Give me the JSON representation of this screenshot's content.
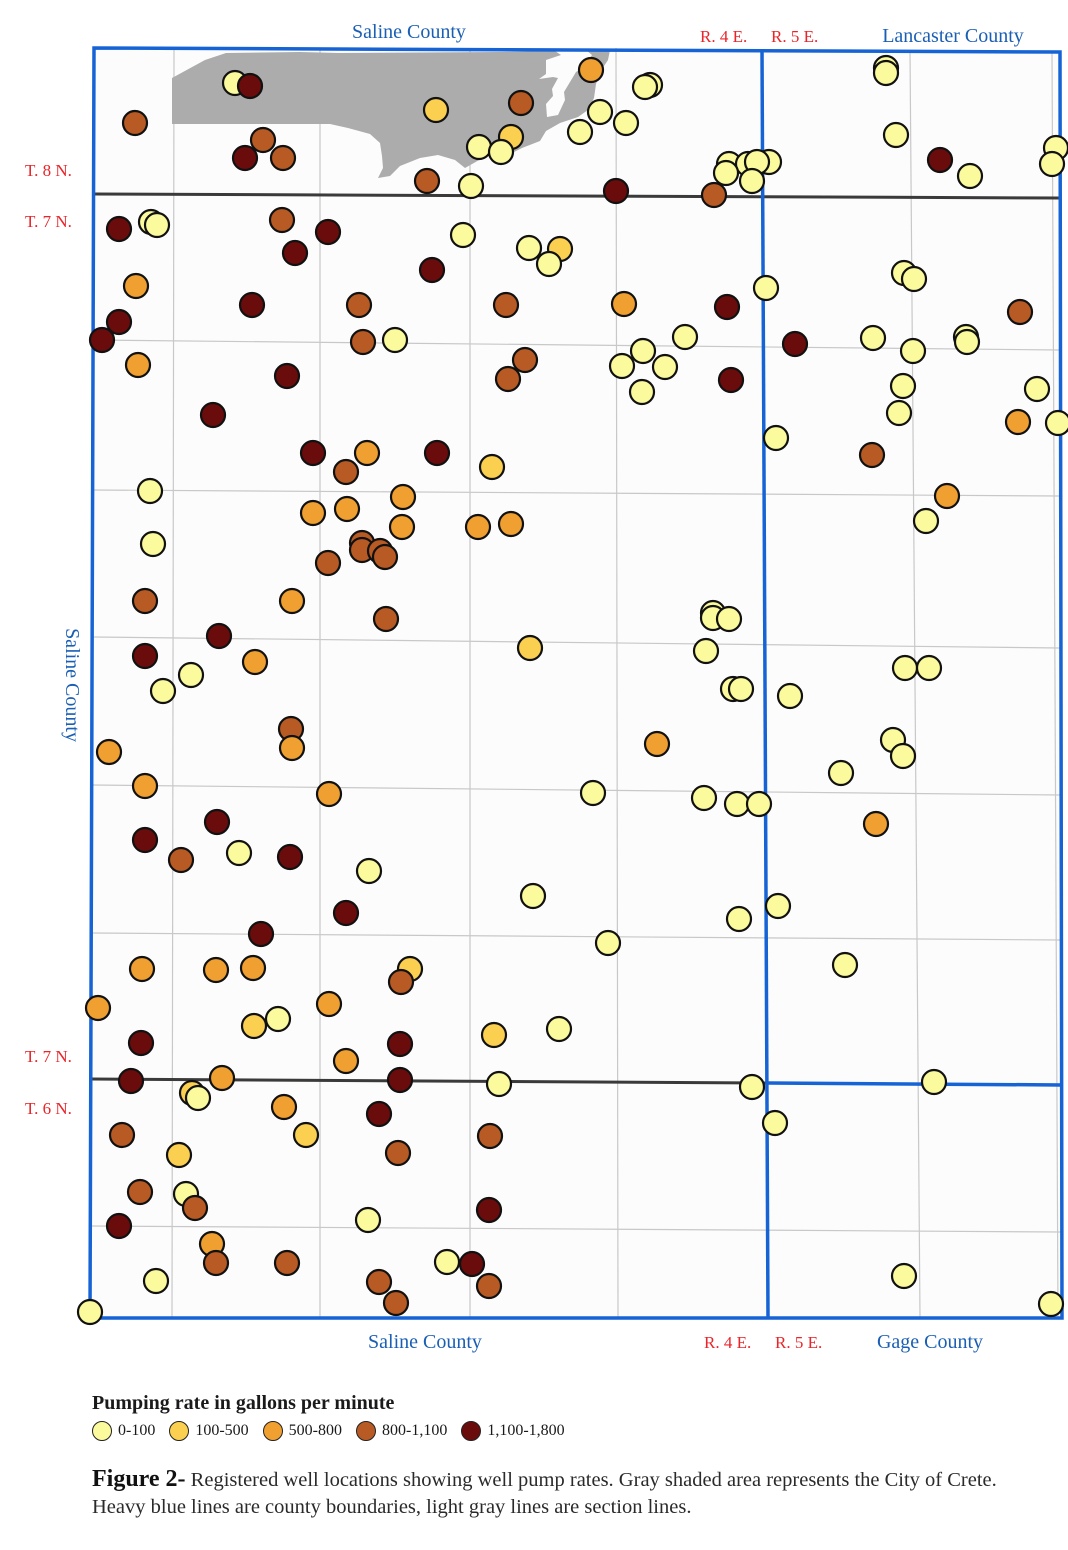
{
  "map": {
    "labels": {
      "saline_top": "Saline County",
      "saline_bottom": "Saline County",
      "saline_left": "Saline County",
      "lancaster": "Lancaster County",
      "gage": "Gage County",
      "r4e_top": "R. 4 E.",
      "r5e_top": "R. 5 E.",
      "r4e_bottom": "R. 4 E.",
      "r5e_bottom": "R. 5 E.",
      "t8n": "T. 8 N.",
      "t7n_top": "T. 7 N.",
      "t7n_bottom": "T. 7 N.",
      "t6n": "T. 6 N."
    },
    "colors": {
      "county_line": "#1663d6",
      "township_line": "#3a3a3a",
      "section_line": "#c8c8c8",
      "city_fill": "#acacac",
      "rate_0_100": "#fbfa9d",
      "rate_100_500": "#fbd050",
      "rate_500_800": "#f0a030",
      "rate_800_1100": "#b85a24",
      "rate_1100_1800": "#6a0c0c"
    },
    "wells": [
      [
        "A",
        235,
        83
      ],
      [
        "E",
        250,
        86
      ],
      [
        "D",
        135,
        123
      ],
      [
        "D",
        263,
        140
      ],
      [
        "E",
        245,
        158
      ],
      [
        "D",
        283,
        158
      ],
      [
        "B",
        436,
        110
      ],
      [
        "D",
        521,
        103
      ],
      [
        "C",
        591,
        70
      ],
      [
        "A",
        650,
        85
      ],
      [
        "A",
        645,
        87
      ],
      [
        "A",
        600,
        112
      ],
      [
        "A",
        626,
        123
      ],
      [
        "A",
        580,
        132
      ],
      [
        "B",
        511,
        137
      ],
      [
        "A",
        479,
        147
      ],
      [
        "A",
        501,
        152
      ],
      [
        "D",
        427,
        181
      ],
      [
        "A",
        471,
        186
      ],
      [
        "E",
        616,
        191
      ],
      [
        "D",
        714,
        195
      ],
      [
        "A",
        729,
        164
      ],
      [
        "A",
        748,
        164
      ],
      [
        "A",
        769,
        162
      ],
      [
        "A",
        757,
        162
      ],
      [
        "A",
        726,
        173
      ],
      [
        "A",
        752,
        181
      ],
      [
        "A",
        886,
        68
      ],
      [
        "A",
        886,
        73
      ],
      [
        "A",
        896,
        135
      ],
      [
        "E",
        940,
        160
      ],
      [
        "A",
        970,
        176
      ],
      [
        "A",
        1056,
        148
      ],
      [
        "A",
        1052,
        164
      ],
      [
        "A",
        151,
        222
      ],
      [
        "A",
        157,
        225
      ],
      [
        "E",
        119,
        229
      ],
      [
        "D",
        282,
        220
      ],
      [
        "E",
        328,
        232
      ],
      [
        "E",
        295,
        253
      ],
      [
        "A",
        463,
        235
      ],
      [
        "A",
        529,
        248
      ],
      [
        "B",
        560,
        249
      ],
      [
        "A",
        549,
        264
      ],
      [
        "E",
        432,
        270
      ],
      [
        "C",
        136,
        286
      ],
      [
        "E",
        252,
        305
      ],
      [
        "E",
        119,
        322
      ],
      [
        "E",
        102,
        340
      ],
      [
        "D",
        359,
        305
      ],
      [
        "D",
        363,
        342
      ],
      [
        "A",
        395,
        340
      ],
      [
        "D",
        506,
        305
      ],
      [
        "C",
        624,
        304
      ],
      [
        "E",
        727,
        307
      ],
      [
        "A",
        766,
        288
      ],
      [
        "D",
        525,
        360
      ],
      [
        "D",
        508,
        379
      ],
      [
        "A",
        685,
        337
      ],
      [
        "A",
        643,
        351
      ],
      [
        "A",
        622,
        366
      ],
      [
        "A",
        665,
        367
      ],
      [
        "A",
        642,
        392
      ],
      [
        "E",
        731,
        380
      ],
      [
        "E",
        795,
        344
      ],
      [
        "A",
        904,
        273
      ],
      [
        "A",
        914,
        279
      ],
      [
        "A",
        873,
        338
      ],
      [
        "A",
        966,
        337
      ],
      [
        "A",
        967,
        342
      ],
      [
        "A",
        913,
        351
      ],
      [
        "D",
        1020,
        312
      ],
      [
        "A",
        903,
        386
      ],
      [
        "A",
        1037,
        389
      ],
      [
        "A",
        899,
        413
      ],
      [
        "C",
        1018,
        422
      ],
      [
        "A",
        1058,
        423
      ],
      [
        "C",
        138,
        365
      ],
      [
        "E",
        287,
        376
      ],
      [
        "E",
        213,
        415
      ],
      [
        "A",
        776,
        438
      ],
      [
        "D",
        872,
        455
      ],
      [
        "E",
        313,
        453
      ],
      [
        "E",
        437,
        453
      ],
      [
        "C",
        367,
        453
      ],
      [
        "D",
        346,
        472
      ],
      [
        "B",
        492,
        467
      ],
      [
        "A",
        150,
        491
      ],
      [
        "C",
        403,
        497
      ],
      [
        "C",
        313,
        513
      ],
      [
        "C",
        347,
        509
      ],
      [
        "C",
        402,
        527
      ],
      [
        "C",
        478,
        527
      ],
      [
        "C",
        511,
        524
      ],
      [
        "D",
        362,
        543
      ],
      [
        "D",
        362,
        550
      ],
      [
        "D",
        380,
        551
      ],
      [
        "D",
        385,
        557
      ],
      [
        "D",
        328,
        563
      ],
      [
        "A",
        153,
        544
      ],
      [
        "C",
        947,
        496
      ],
      [
        "A",
        926,
        521
      ],
      [
        "D",
        145,
        601
      ],
      [
        "C",
        292,
        601
      ],
      [
        "D",
        386,
        619
      ],
      [
        "E",
        219,
        636
      ],
      [
        "E",
        145,
        656
      ],
      [
        "A",
        713,
        613
      ],
      [
        "A",
        713,
        618
      ],
      [
        "A",
        729,
        619
      ],
      [
        "B",
        530,
        648
      ],
      [
        "A",
        706,
        651
      ],
      [
        "C",
        255,
        662
      ],
      [
        "A",
        191,
        675
      ],
      [
        "A",
        163,
        691
      ],
      [
        "A",
        905,
        668
      ],
      [
        "A",
        929,
        668
      ],
      [
        "A",
        733,
        689
      ],
      [
        "A",
        741,
        689
      ],
      [
        "A",
        790,
        696
      ],
      [
        "D",
        291,
        729
      ],
      [
        "C",
        292,
        748
      ],
      [
        "C",
        109,
        752
      ],
      [
        "C",
        657,
        744
      ],
      [
        "A",
        893,
        740
      ],
      [
        "A",
        903,
        756
      ],
      [
        "C",
        145,
        786
      ],
      [
        "C",
        329,
        794
      ],
      [
        "A",
        593,
        793
      ],
      [
        "A",
        704,
        798
      ],
      [
        "A",
        737,
        804
      ],
      [
        "A",
        759,
        804
      ],
      [
        "A",
        841,
        773
      ],
      [
        "C",
        876,
        824
      ],
      [
        "E",
        217,
        822
      ],
      [
        "E",
        145,
        840
      ],
      [
        "D",
        181,
        860
      ],
      [
        "A",
        239,
        853
      ],
      [
        "E",
        290,
        857
      ],
      [
        "A",
        369,
        871
      ],
      [
        "A",
        533,
        896
      ],
      [
        "A",
        739,
        919
      ],
      [
        "A",
        778,
        906
      ],
      [
        "E",
        346,
        913
      ],
      [
        "E",
        261,
        934
      ],
      [
        "A",
        608,
        943
      ],
      [
        "A",
        845,
        965
      ],
      [
        "C",
        142,
        969
      ],
      [
        "C",
        216,
        970
      ],
      [
        "C",
        253,
        968
      ],
      [
        "B",
        410,
        969
      ],
      [
        "D",
        401,
        982
      ],
      [
        "C",
        98,
        1008
      ],
      [
        "C",
        329,
        1004
      ],
      [
        "B",
        254,
        1026
      ],
      [
        "A",
        278,
        1019
      ],
      [
        "A",
        559,
        1029
      ],
      [
        "B",
        494,
        1035
      ],
      [
        "E",
        141,
        1043
      ],
      [
        "C",
        346,
        1061
      ],
      [
        "E",
        400,
        1044
      ],
      [
        "E",
        131,
        1081
      ],
      [
        "C",
        222,
        1078
      ],
      [
        "E",
        400,
        1080
      ],
      [
        "A",
        499,
        1084
      ],
      [
        "A",
        752,
        1087
      ],
      [
        "A",
        934,
        1082
      ],
      [
        "B",
        192,
        1093
      ],
      [
        "A",
        198,
        1098
      ],
      [
        "C",
        284,
        1107
      ],
      [
        "E",
        379,
        1114
      ],
      [
        "A",
        775,
        1123
      ],
      [
        "D",
        122,
        1135
      ],
      [
        "B",
        306,
        1135
      ],
      [
        "D",
        490,
        1136
      ],
      [
        "B",
        179,
        1155
      ],
      [
        "D",
        398,
        1153
      ],
      [
        "D",
        140,
        1192
      ],
      [
        "A",
        186,
        1194
      ],
      [
        "D",
        195,
        1208
      ],
      [
        "E",
        489,
        1210
      ],
      [
        "E",
        119,
        1226
      ],
      [
        "A",
        368,
        1220
      ],
      [
        "C",
        212,
        1244
      ],
      [
        "D",
        216,
        1263
      ],
      [
        "D",
        287,
        1263
      ],
      [
        "A",
        447,
        1262
      ],
      [
        "E",
        472,
        1264
      ],
      [
        "A",
        156,
        1281
      ],
      [
        "D",
        379,
        1282
      ],
      [
        "D",
        489,
        1286
      ],
      [
        "D",
        396,
        1303
      ],
      [
        "A",
        904,
        1276
      ],
      [
        "A",
        1051,
        1304
      ],
      [
        "A",
        90,
        1312
      ]
    ]
  },
  "legend": {
    "title": "Pumping rate in gallons per minute",
    "items": [
      {
        "key": "A",
        "label": "0-100",
        "color": "#fbfa9d"
      },
      {
        "key": "B",
        "label": "100-500",
        "color": "#fbd050"
      },
      {
        "key": "C",
        "label": "500-800",
        "color": "#f0a030"
      },
      {
        "key": "D",
        "label": "800-1,100",
        "color": "#b85a24"
      },
      {
        "key": "E",
        "label": "1,100-1,800",
        "color": "#6a0c0c"
      }
    ]
  },
  "caption": {
    "lead": "Figure 2-",
    "text": " Registered well locations showing well pump rates.  Gray shaded area represents the City of Crete.  Heavy blue lines are county boundaries, light gray lines are section lines."
  }
}
